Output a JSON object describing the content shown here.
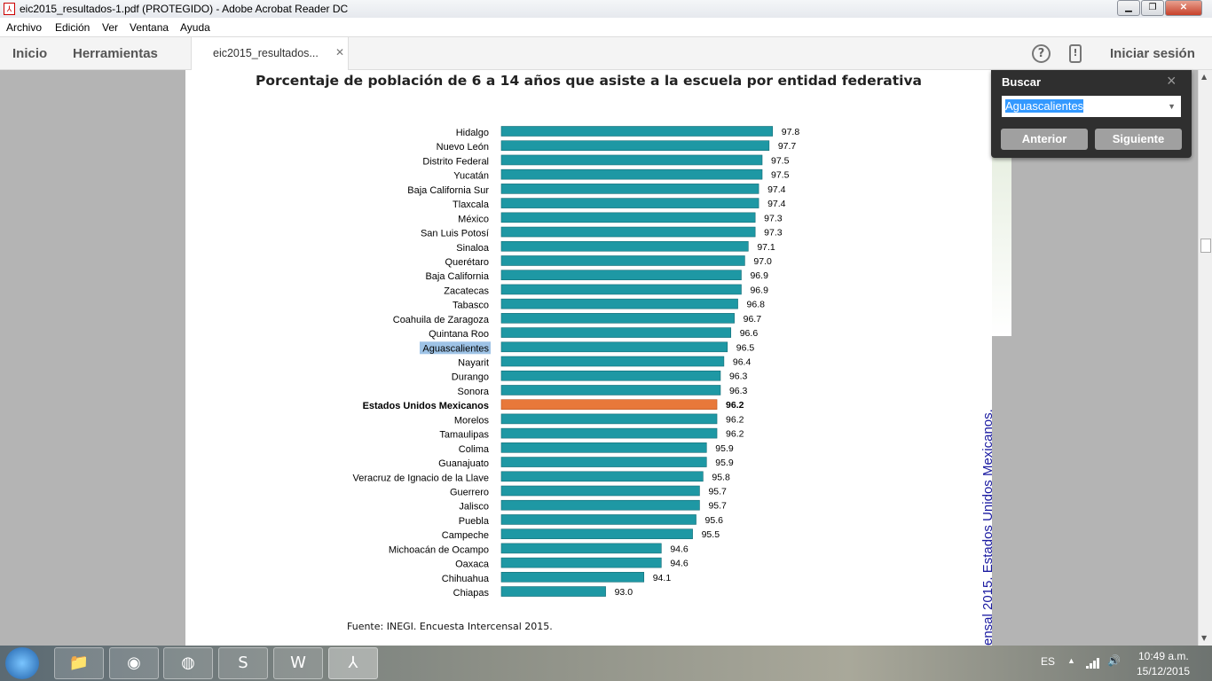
{
  "window": {
    "title": "eic2015_resultados-1.pdf (PROTEGIDO) - Adobe Acrobat Reader DC"
  },
  "menu": [
    "Archivo",
    "Edición",
    "Ver",
    "Ventana",
    "Ayuda"
  ],
  "toolbar": {
    "home": "Inicio",
    "tools": "Herramientas",
    "tab": "eic2015_resultados...",
    "signin": "Iniciar sesión",
    "help_icon": "?",
    "mobile_icon": "!"
  },
  "find": {
    "title": "Buscar",
    "value": "Aguascalientes",
    "prev": "Anterior",
    "next": "Siguiente"
  },
  "chart_data": {
    "type": "bar",
    "orientation": "horizontal",
    "title": "Porcentaje de población de 6 a 14 años que asiste a la escuela por entidad federativa",
    "source": "Fuente: INEGI. Encuesta Intercensal 2015.",
    "categories": [
      "Hidalgo",
      "Nuevo León",
      "Distrito Federal",
      "Yucatán",
      "Baja California Sur",
      "Tlaxcala",
      "México",
      "San Luis Potosí",
      "Sinaloa",
      "Querétaro",
      "Baja California",
      "Zacatecas",
      "Tabasco",
      "Coahuila de Zaragoza",
      "Quintana Roo",
      "Aguascalientes",
      "Nayarit",
      "Durango",
      "Sonora",
      "Estados Unidos Mexicanos",
      "Morelos",
      "Tamaulipas",
      "Colima",
      "Guanajuato",
      "Veracruz de Ignacio de la Llave",
      "Guerrero",
      "Jalisco",
      "Puebla",
      "Campeche",
      "Michoacán de Ocampo",
      "Oaxaca",
      "Chihuahua",
      "Chiapas"
    ],
    "values": [
      97.8,
      97.7,
      97.5,
      97.5,
      97.4,
      97.4,
      97.3,
      97.3,
      97.1,
      97.0,
      96.9,
      96.9,
      96.8,
      96.7,
      96.6,
      96.5,
      96.4,
      96.3,
      96.3,
      96.2,
      96.2,
      96.2,
      95.9,
      95.9,
      95.8,
      95.7,
      95.7,
      95.6,
      95.5,
      94.6,
      94.6,
      94.1,
      93.0
    ],
    "highlight": "Estados Unidos Mexicanos",
    "search_highlight": "Aguascalientes",
    "xlim": [
      90,
      100
    ],
    "colors": {
      "bar": "#1e98a4",
      "highlight": "#e8783a"
    }
  },
  "side_text": "ensal 2015. Estados Unidos Mexicanos.",
  "tray": {
    "lang": "ES",
    "time": "10:49 a.m.",
    "date": "15/12/2015"
  }
}
